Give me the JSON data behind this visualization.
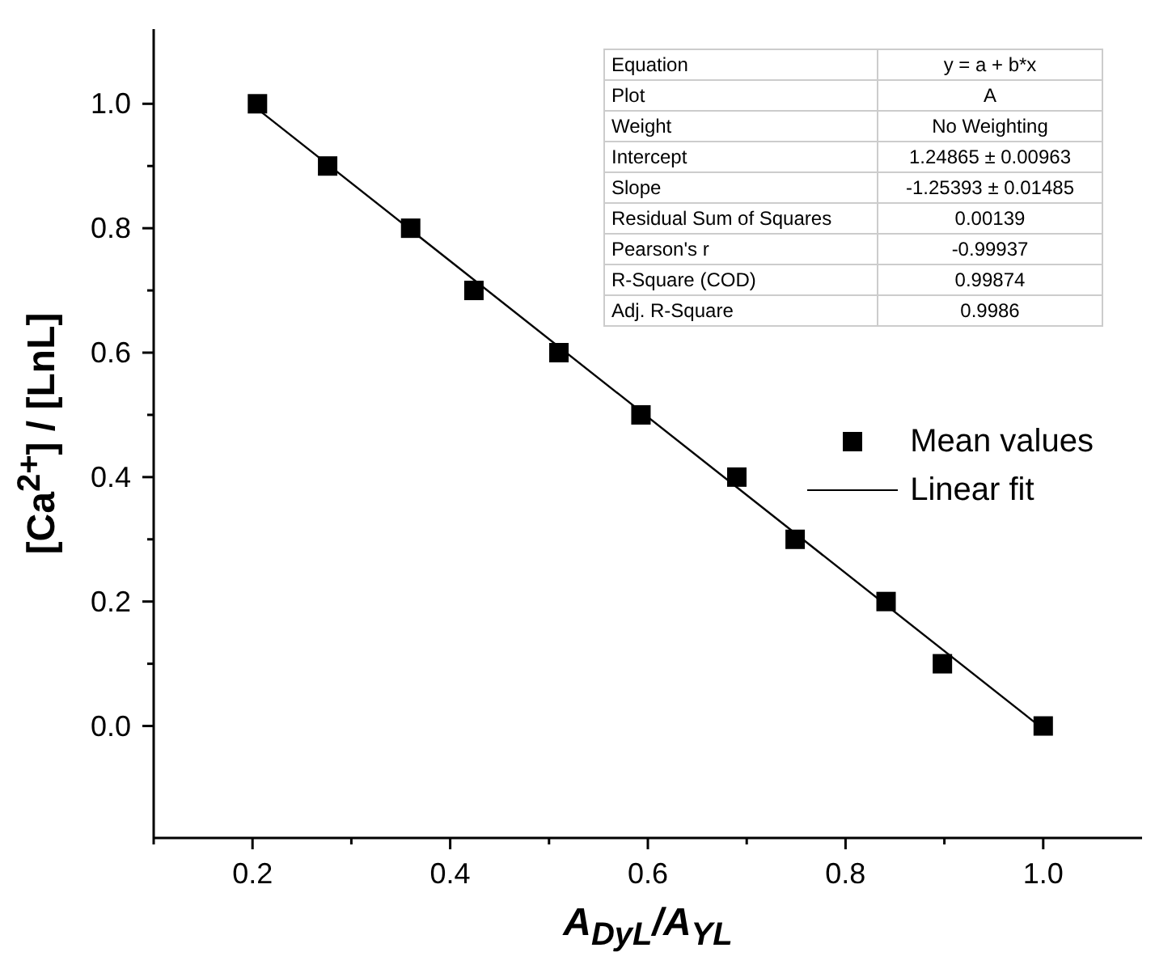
{
  "chart_data": {
    "type": "scatter",
    "xlabel": "A$_{DyL}$/A$_{YL}$",
    "ylabel": "[Ca$^{2+}$] / [LnL]",
    "xlim": [
      0.1,
      1.1
    ],
    "ylim": [
      -0.18,
      1.12
    ],
    "xticks": [
      {
        "value": 0.1,
        "label": null
      },
      0.2,
      {
        "value": 0.3,
        "label": null
      },
      0.4,
      {
        "value": 0.5,
        "label": null
      },
      0.6,
      {
        "value": 0.7,
        "label": null
      },
      0.8,
      {
        "value": 0.9,
        "label": null
      },
      {
        "value": 1,
        "label": "1.0"
      }
    ],
    "yticks": [
      {
        "value": 0,
        "label": "0.0"
      },
      {
        "value": 0.1,
        "label": null
      },
      0.2,
      {
        "value": 0.3,
        "label": null
      },
      0.4,
      {
        "value": 0.5,
        "label": null
      },
      0.6,
      {
        "value": 0.7,
        "label": null
      },
      0.8,
      {
        "value": 0.9,
        "label": null
      },
      {
        "value": 1,
        "label": "1.0"
      }
    ],
    "series": [
      {
        "name": "Mean values",
        "type": "scatter",
        "color": "#000000",
        "marker": "square",
        "x": [
          0.205,
          0.276,
          0.36,
          0.424,
          0.51,
          0.593,
          0.69,
          0.749,
          0.841,
          0.898,
          1.0
        ],
        "values": [
          1.0,
          0.9,
          0.8,
          0.7,
          0.6,
          0.5,
          0.4,
          0.3,
          0.2,
          0.1,
          0.0
        ]
      },
      {
        "name": "Linear fit",
        "type": "line",
        "color": "#000000",
        "marker": "none",
        "line_style": "solid",
        "x": [
          0.2,
          1.0
        ],
        "values": [
          0.998,
          -0.005
        ]
      }
    ],
    "legend": "right",
    "annotations": [
      "Equation",
      "y = a + b*x",
      "Plot",
      "A",
      "Weight",
      "No Weighting",
      "Intercept",
      "1.24865 ± 0.00963",
      "Slope",
      "-1.25393 ± 0.01485",
      "Residual Sum of Squares",
      "0.00139",
      "Pearson's r",
      "-0.99937",
      "R-Square (COD)",
      "0.99874",
      "Adj. R-Square",
      "0.9986"
    ]
  }
}
